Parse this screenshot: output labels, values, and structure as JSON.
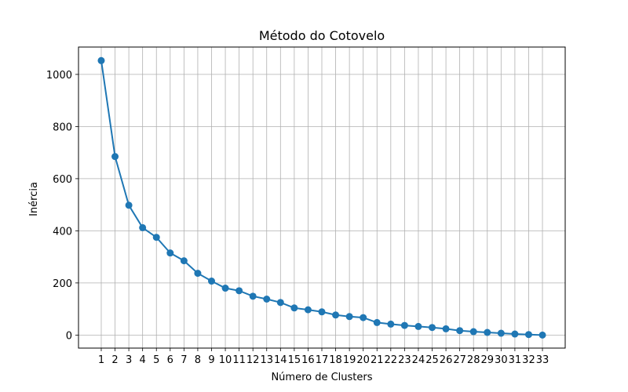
{
  "chart_data": {
    "type": "line",
    "title": "Método do Cotovelo",
    "xlabel": "Número de Clusters",
    "ylabel": "Inércia",
    "grid": true,
    "marker": "circle",
    "color": "#1f77b4",
    "xlim": [
      -0.65,
      34.65
    ],
    "ylim": [
      -50,
      1105
    ],
    "yticks": [
      0,
      200,
      400,
      600,
      800,
      1000
    ],
    "x": [
      1,
      2,
      3,
      4,
      5,
      6,
      7,
      8,
      9,
      10,
      11,
      12,
      13,
      14,
      15,
      16,
      17,
      18,
      19,
      20,
      21,
      22,
      23,
      24,
      25,
      26,
      27,
      28,
      29,
      30,
      31,
      32,
      33
    ],
    "series": [
      {
        "values": [
          1053,
          685,
          498,
          412,
          375,
          315,
          285,
          237,
          207,
          180,
          170,
          149,
          138,
          125,
          104,
          97,
          89,
          77,
          71,
          67,
          48,
          42,
          37,
          33,
          29,
          24,
          17,
          13,
          10,
          7,
          4,
          2,
          0
        ]
      }
    ]
  }
}
